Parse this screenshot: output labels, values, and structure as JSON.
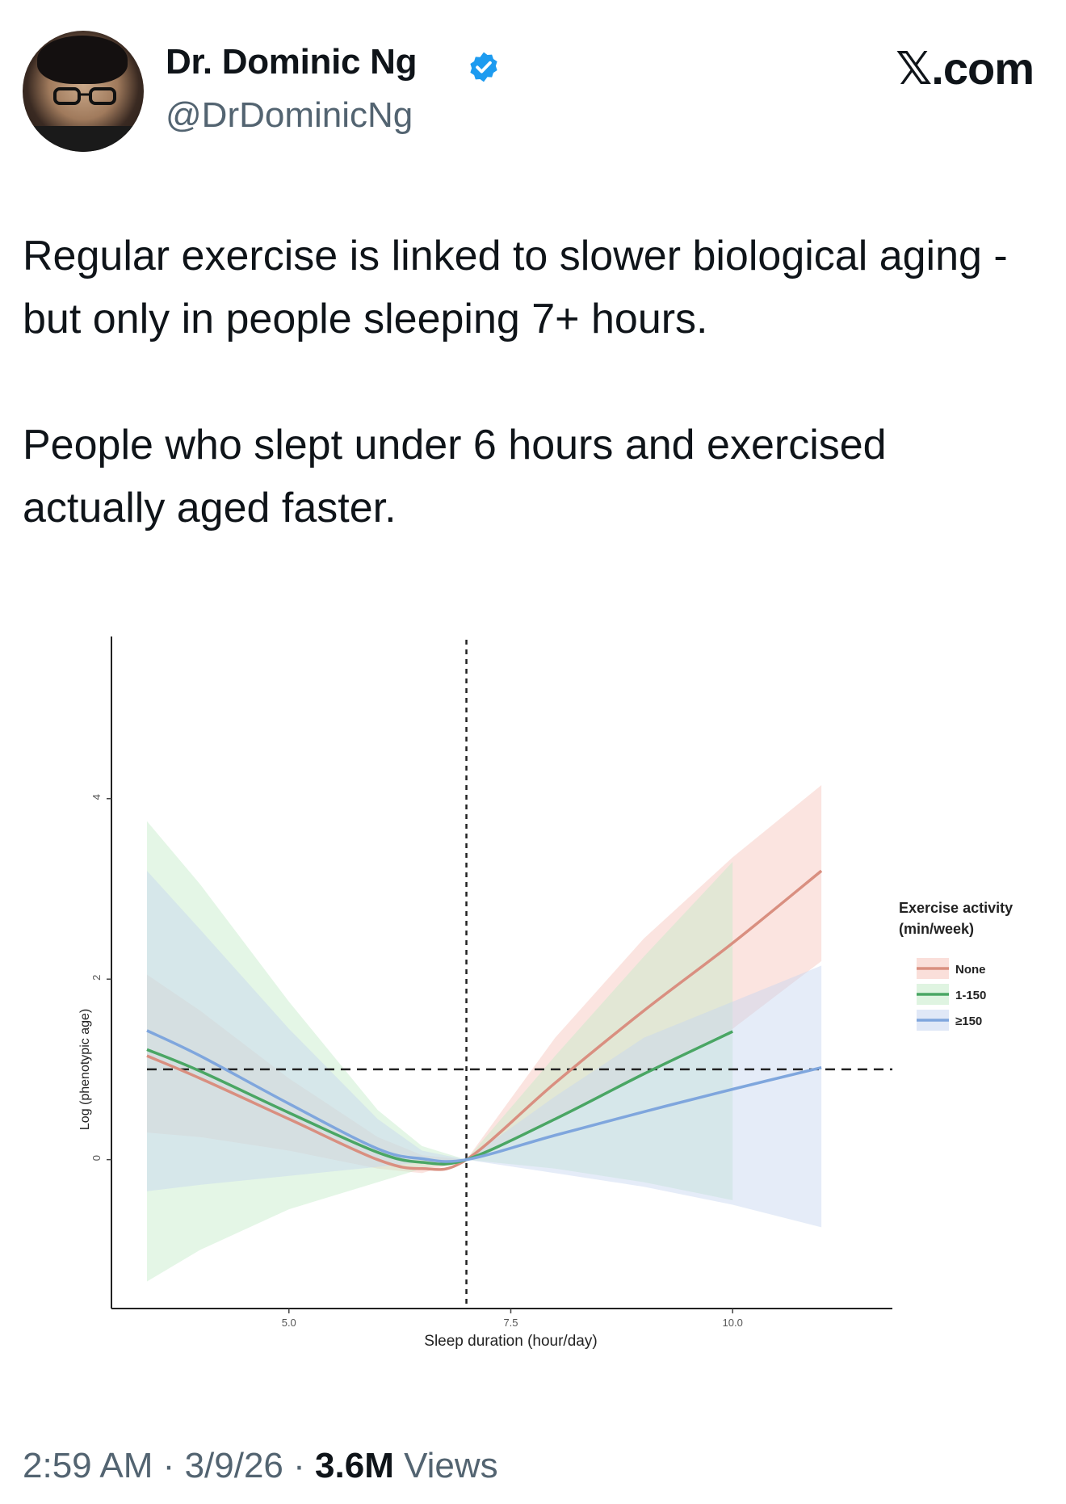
{
  "author": {
    "name": "Dr. Dominic Ng",
    "handle": "@DrDominicNg",
    "verified": true,
    "accent_color": "#1d9bf0"
  },
  "site": {
    "brand": "𝕏.com"
  },
  "tweet": {
    "paragraphs": [
      "Regular exercise is linked to slower biological aging - but only in people sleeping 7+ hours.",
      "People who slept under 6 hours and exercised actually aged faster."
    ]
  },
  "footer": {
    "time": "2:59 AM",
    "sep1": "·",
    "date": "3/9/26",
    "sep2": "·",
    "views_count": "3.6M",
    "views_label": "Views"
  },
  "chart_data": {
    "type": "line",
    "xlabel": "Sleep duration (hour/day)",
    "ylabel": "Log (phenotypic age)",
    "xlim": [
      3.0,
      11.8
    ],
    "ylim": [
      -1.65,
      5.6
    ],
    "x_ticks": [
      5.0,
      7.5,
      10.0
    ],
    "x_tick_labels": [
      "5.0",
      "7.5",
      "10.0"
    ],
    "y_ticks": [
      0,
      2,
      4
    ],
    "y_tick_labels": [
      "0",
      "2",
      "4"
    ],
    "ref_lines": {
      "vertical_x": 7.0,
      "horizontal_y": 1.0,
      "style": "dashed"
    },
    "legend": {
      "title_line1": "Exercise activity",
      "title_line2": "(min/week)",
      "placement": "right"
    },
    "series": [
      {
        "name": "None",
        "color": "#d98f80",
        "band_color": "#f6c4bb",
        "x": [
          3.4,
          4.0,
          5.0,
          6.0,
          6.5,
          7.0,
          8.0,
          9.0,
          10.0,
          11.0
        ],
        "y": [
          1.15,
          0.9,
          0.45,
          0.0,
          -0.1,
          0.0,
          0.85,
          1.65,
          2.4,
          3.2
        ],
        "lower": [
          0.3,
          0.25,
          0.1,
          -0.1,
          -0.15,
          0.0,
          0.45,
          0.95,
          1.45,
          2.2
        ],
        "upper": [
          2.05,
          1.65,
          0.9,
          0.25,
          0.05,
          0.0,
          1.35,
          2.45,
          3.35,
          4.15
        ]
      },
      {
        "name": "1-150",
        "color": "#4aa664",
        "band_color": "#c4ebc8",
        "x": [
          3.4,
          4.0,
          5.0,
          6.0,
          6.5,
          7.0,
          8.0,
          9.0,
          10.0
        ],
        "y": [
          1.22,
          0.98,
          0.52,
          0.08,
          -0.03,
          0.0,
          0.45,
          0.95,
          1.42
        ],
        "lower": [
          -1.35,
          -1.0,
          -0.55,
          -0.25,
          -0.1,
          0.0,
          -0.1,
          -0.25,
          -0.45
        ],
        "upper": [
          3.75,
          3.05,
          1.75,
          0.55,
          0.15,
          0.0,
          1.15,
          2.25,
          3.3
        ]
      },
      {
        "name": "≥150",
        "color": "#7fa6dd",
        "band_color": "#c6d5f0",
        "x": [
          3.4,
          4.0,
          5.0,
          6.0,
          6.5,
          7.0,
          8.0,
          9.0,
          10.0,
          11.0
        ],
        "y": [
          1.43,
          1.15,
          0.62,
          0.12,
          0.01,
          0.0,
          0.27,
          0.53,
          0.78,
          1.02
        ],
        "lower": [
          -0.35,
          -0.28,
          -0.18,
          -0.08,
          -0.03,
          0.0,
          -0.15,
          -0.3,
          -0.5,
          -0.75
        ],
        "upper": [
          3.2,
          2.55,
          1.45,
          0.45,
          0.1,
          0.0,
          0.7,
          1.35,
          1.75,
          2.15
        ]
      }
    ]
  }
}
